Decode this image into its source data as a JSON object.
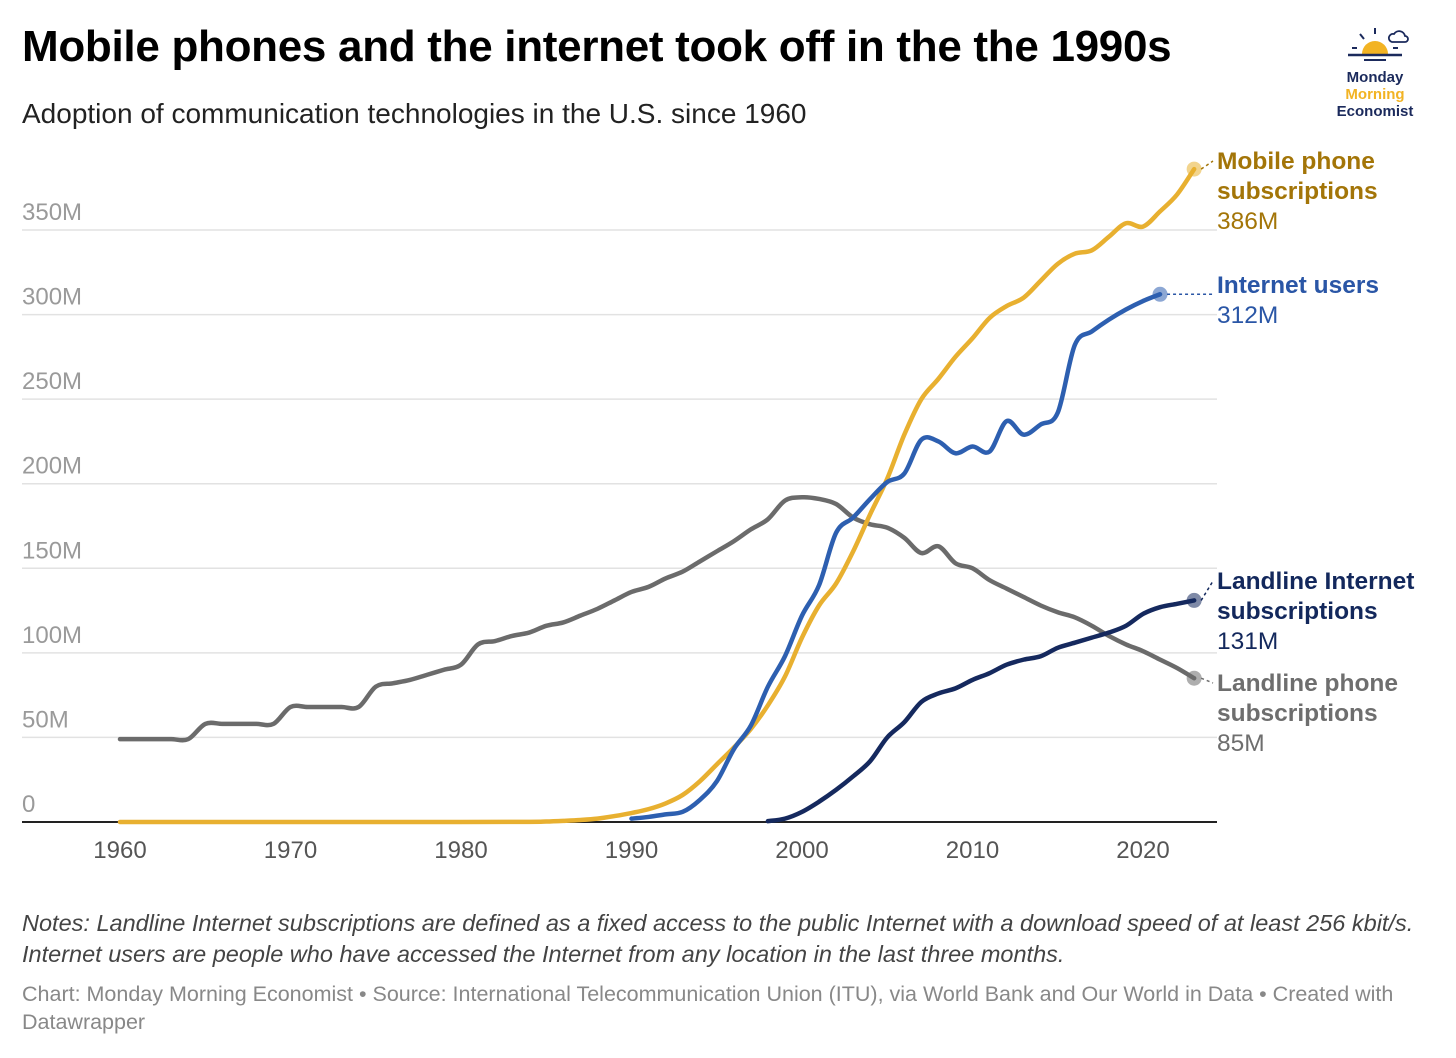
{
  "header": {
    "title": "Mobile phones and the internet took off in the the 1990s",
    "subtitle": "Adoption of communication technologies in the U.S. since 1960"
  },
  "logo": {
    "line1": "Monday",
    "line2": "Morning",
    "line3": "Economist"
  },
  "footer": {
    "notes": "Notes: Landline Internet subscriptions are defined as a fixed access to the public Internet with a download speed of at least 256 kbit/s. Internet users are people who have accessed the Internet from any location in the last three months.",
    "source": "Chart: Monday Morning Economist • Source: International Telecommunication Union (ITU), via World Bank and Our World in Data • Created with Datawrapper"
  },
  "chart_data": {
    "type": "line",
    "title": "Mobile phones and the internet took off in the the 1990s",
    "xlabel": "",
    "ylabel": "",
    "xlim": [
      1960,
      2023
    ],
    "ylim": [
      0,
      350
    ],
    "x_ticks": [
      1960,
      1970,
      1980,
      1990,
      2000,
      2010,
      2020
    ],
    "x_tick_labels": [
      "1960",
      "1970",
      "1980",
      "1990",
      "2000",
      "2010",
      "2020"
    ],
    "y_ticks": [
      0,
      50,
      100,
      150,
      200,
      250,
      300,
      350
    ],
    "y_tick_labels": [
      "0",
      "50M",
      "100M",
      "150M",
      "200M",
      "250M",
      "300M",
      "350M"
    ],
    "grid": true,
    "series": [
      {
        "name": "Landline phone subscriptions",
        "label_lines": [
          "Landline phone",
          "subscriptions"
        ],
        "end_label": "85M",
        "color": "#6b6b6b",
        "text_color": "#6e6e6e",
        "x": [
          1960,
          1961,
          1962,
          1963,
          1964,
          1965,
          1966,
          1967,
          1968,
          1969,
          1970,
          1971,
          1972,
          1973,
          1974,
          1975,
          1976,
          1977,
          1978,
          1979,
          1980,
          1981,
          1982,
          1983,
          1984,
          1985,
          1986,
          1987,
          1988,
          1989,
          1990,
          1991,
          1992,
          1993,
          1994,
          1995,
          1996,
          1997,
          1998,
          1999,
          2000,
          2001,
          2002,
          2003,
          2004,
          2005,
          2006,
          2007,
          2008,
          2009,
          2010,
          2011,
          2012,
          2013,
          2014,
          2015,
          2016,
          2017,
          2018,
          2019,
          2020,
          2021,
          2022,
          2023
        ],
        "values": [
          49,
          49,
          49,
          49,
          49,
          58,
          58,
          58,
          58,
          58,
          68,
          68,
          68,
          68,
          68,
          80,
          82,
          84,
          87,
          90,
          93,
          105,
          107,
          110,
          112,
          116,
          118,
          122,
          126,
          131,
          136,
          139,
          144,
          148,
          154,
          160,
          166,
          173,
          179,
          190,
          192,
          191,
          188,
          180,
          176,
          174,
          168,
          159,
          163,
          153,
          150,
          143,
          138,
          133,
          128,
          124,
          121,
          116,
          110,
          105,
          101,
          96,
          91,
          85
        ]
      },
      {
        "name": "Mobile phone subscriptions",
        "label_lines": [
          "Mobile phone",
          "subscriptions"
        ],
        "end_label": "386M",
        "color": "#e8b030",
        "text_color": "#a37508",
        "x": [
          1960,
          1970,
          1980,
          1984,
          1985,
          1986,
          1987,
          1988,
          1989,
          1990,
          1991,
          1992,
          1993,
          1994,
          1995,
          1996,
          1997,
          1998,
          1999,
          2000,
          2001,
          2002,
          2003,
          2004,
          2005,
          2006,
          2007,
          2008,
          2009,
          2010,
          2011,
          2012,
          2013,
          2014,
          2015,
          2016,
          2017,
          2018,
          2019,
          2020,
          2021,
          2022,
          2023
        ],
        "values": [
          0,
          0,
          0,
          0.1,
          0.3,
          0.7,
          1.2,
          2,
          3.5,
          5.3,
          7.6,
          11,
          16,
          24,
          34,
          44,
          55,
          69,
          86,
          109,
          128,
          141,
          160,
          182,
          203,
          229,
          250,
          262,
          275,
          286,
          298,
          305,
          310,
          320,
          330,
          336,
          338,
          346,
          354,
          352,
          361,
          371,
          386
        ]
      },
      {
        "name": "Internet users",
        "label_lines": [
          "Internet users"
        ],
        "end_label": "312M",
        "color": "#2d5fb0",
        "text_color": "#2a56a6",
        "x": [
          1990,
          1991,
          1992,
          1993,
          1994,
          1995,
          1996,
          1997,
          1998,
          1999,
          2000,
          2001,
          2002,
          2003,
          2004,
          2005,
          2006,
          2007,
          2008,
          2009,
          2010,
          2011,
          2012,
          2013,
          2014,
          2015,
          2016,
          2017,
          2018,
          2019,
          2020,
          2021
        ],
        "values": [
          2,
          3,
          4.5,
          6,
          13,
          24,
          43,
          57,
          80,
          98,
          122,
          140,
          171,
          180,
          191,
          201,
          206,
          226,
          225,
          218,
          222,
          219,
          237,
          229,
          235,
          242,
          282,
          290,
          297,
          303,
          308,
          312
        ]
      },
      {
        "name": "Landline Internet subscriptions",
        "label_lines": [
          "Landline Internet",
          "subscriptions"
        ],
        "end_label": "131M",
        "color": "#15295e",
        "text_color": "#13285c",
        "x": [
          1998,
          1999,
          2000,
          2001,
          2002,
          2003,
          2004,
          2005,
          2006,
          2007,
          2008,
          2009,
          2010,
          2011,
          2012,
          2013,
          2014,
          2015,
          2016,
          2017,
          2018,
          2019,
          2020,
          2021,
          2022,
          2023
        ],
        "values": [
          0.5,
          2,
          6,
          12,
          19,
          27,
          36,
          50,
          59,
          71,
          76,
          79,
          84,
          88,
          93,
          96,
          98,
          103,
          106,
          109,
          112,
          116,
          123,
          127,
          129,
          131
        ]
      }
    ]
  }
}
